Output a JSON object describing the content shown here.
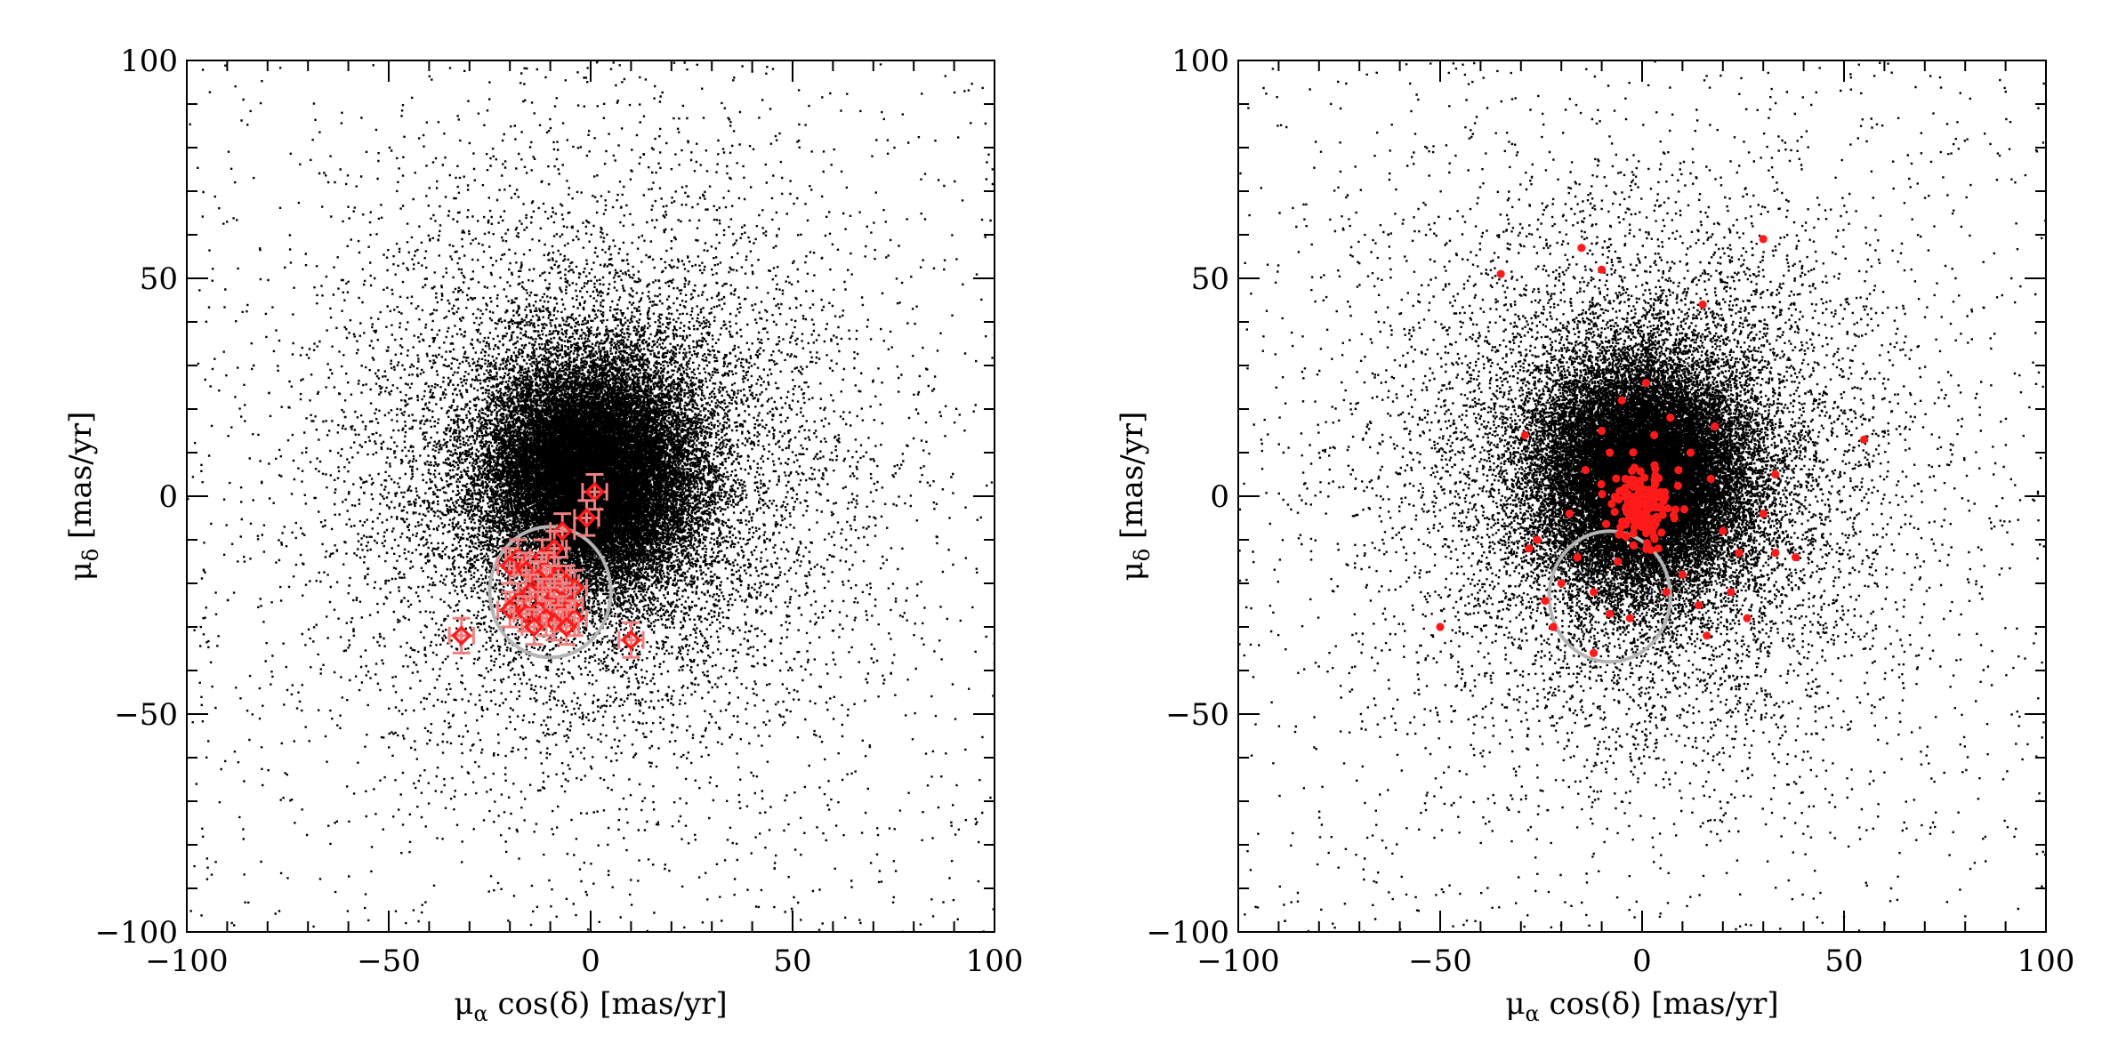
{
  "colors": {
    "background": "#ffffff",
    "field_points": "#000000",
    "member_points": "#ff1a1a",
    "member_errorbars": "#f08080",
    "selection_circle": "#b4b4b4"
  },
  "chart_data": [
    {
      "type": "scatter",
      "title": "",
      "xlabel": {
        "prefix": "μ",
        "sub": "α",
        "suffix": " cos(δ) [mas/yr]"
      },
      "ylabel": {
        "prefix": "μ",
        "sub": "δ",
        "suffix": " [mas/yr]"
      },
      "xlim": [
        -100,
        100
      ],
      "ylim": [
        -100,
        100
      ],
      "xticks": [
        "−100",
        "−50",
        "0",
        "50",
        "100"
      ],
      "yticks": [
        "−100",
        "−50",
        "0",
        "50",
        "100"
      ],
      "grid": false,
      "legend": "none",
      "field_cloud": {
        "center": [
          0,
          5
        ],
        "core_sigma": 13,
        "halo_sigma": 32,
        "marker": "dot",
        "color": "#000000"
      },
      "circle": {
        "center": [
          -10,
          -22
        ],
        "radius": 15
      },
      "series": [
        {
          "marker": "diamond-errorbars",
          "color": "#ff1a1a",
          "points": [
            {
              "x": 1,
              "y": 1,
              "xerr": 3,
              "yerr": 4
            },
            {
              "x": -1,
              "y": -5,
              "xerr": 3,
              "yerr": 4
            },
            {
              "x": -7,
              "y": -8,
              "xerr": 3,
              "yerr": 4
            },
            {
              "x": -9,
              "y": -12,
              "xerr": 3,
              "yerr": 4
            },
            {
              "x": -12,
              "y": -14,
              "xerr": 3,
              "yerr": 4
            },
            {
              "x": -18,
              "y": -14,
              "xerr": 3,
              "yerr": 4
            },
            {
              "x": -20,
              "y": -16,
              "xerr": 3,
              "yerr": 4
            },
            {
              "x": -16,
              "y": -17,
              "xerr": 3,
              "yerr": 4
            },
            {
              "x": -11,
              "y": -17,
              "xerr": 3,
              "yerr": 4
            },
            {
              "x": -8,
              "y": -18,
              "xerr": 3,
              "yerr": 4
            },
            {
              "x": -13,
              "y": -19,
              "xerr": 3,
              "yerr": 4
            },
            {
              "x": -10,
              "y": -20,
              "xerr": 3,
              "yerr": 4
            },
            {
              "x": -6,
              "y": -20,
              "xerr": 3,
              "yerr": 4
            },
            {
              "x": -4,
              "y": -21,
              "xerr": 3,
              "yerr": 4
            },
            {
              "x": -15,
              "y": -22,
              "xerr": 3,
              "yerr": 4
            },
            {
              "x": -12,
              "y": -23,
              "xerr": 3,
              "yerr": 4
            },
            {
              "x": -9,
              "y": -23,
              "xerr": 3,
              "yerr": 4
            },
            {
              "x": -18,
              "y": -24,
              "xerr": 3,
              "yerr": 4
            },
            {
              "x": -7,
              "y": -24,
              "xerr": 3,
              "yerr": 4
            },
            {
              "x": -10,
              "y": -25,
              "xerr": 3,
              "yerr": 4
            },
            {
              "x": -5,
              "y": -25,
              "xerr": 3,
              "yerr": 4
            },
            {
              "x": -20,
              "y": -26,
              "xerr": 3,
              "yerr": 4
            },
            {
              "x": -13,
              "y": -26,
              "xerr": 3,
              "yerr": 4
            },
            {
              "x": -16,
              "y": -27,
              "xerr": 3,
              "yerr": 4
            },
            {
              "x": -8,
              "y": -27,
              "xerr": 3,
              "yerr": 4
            },
            {
              "x": -11,
              "y": -28,
              "xerr": 3,
              "yerr": 4
            },
            {
              "x": -4,
              "y": -28,
              "xerr": 3,
              "yerr": 4
            },
            {
              "x": -9,
              "y": -29,
              "xerr": 3,
              "yerr": 4
            },
            {
              "x": -14,
              "y": -30,
              "xerr": 3,
              "yerr": 4
            },
            {
              "x": -6,
              "y": -30,
              "xerr": 3,
              "yerr": 4
            },
            {
              "x": -32,
              "y": -32,
              "xerr": 3,
              "yerr": 4
            },
            {
              "x": 10,
              "y": -33,
              "xerr": 3,
              "yerr": 4
            }
          ]
        }
      ]
    },
    {
      "type": "scatter",
      "title": "",
      "xlabel": {
        "prefix": "μ",
        "sub": "α",
        "suffix": " cos(δ) [mas/yr]"
      },
      "ylabel": {
        "prefix": "μ",
        "sub": "δ",
        "suffix": " [mas/yr]"
      },
      "xlim": [
        -100,
        100
      ],
      "ylim": [
        -100,
        100
      ],
      "xticks": [
        "−100",
        "−50",
        "0",
        "50",
        "100"
      ],
      "yticks": [
        "−100",
        "−50",
        "0",
        "50",
        "100"
      ],
      "grid": false,
      "legend": "none",
      "field_cloud": {
        "center": [
          0,
          5
        ],
        "core_sigma": 13,
        "halo_sigma": 32,
        "marker": "dot",
        "color": "#000000"
      },
      "circle": {
        "center": [
          -8,
          -23
        ],
        "radius": 15
      },
      "series": [
        {
          "marker": "filled-circle",
          "color": "#ff1a1a",
          "cluster": {
            "center": [
              0,
              -2
            ],
            "sigma": [
              4,
              4
            ],
            "count": 170
          },
          "points": [
            {
              "x": -35,
              "y": 51
            },
            {
              "x": -15,
              "y": 57
            },
            {
              "x": -10,
              "y": 52
            },
            {
              "x": 30,
              "y": 59
            },
            {
              "x": 15,
              "y": 44
            },
            {
              "x": 55,
              "y": 13
            },
            {
              "x": -29,
              "y": 14
            },
            {
              "x": -50,
              "y": -30
            },
            {
              "x": 33,
              "y": 5
            },
            {
              "x": 30,
              "y": -4
            },
            {
              "x": 38,
              "y": -14
            },
            {
              "x": 33,
              "y": -13
            },
            {
              "x": 24,
              "y": -13
            },
            {
              "x": 26,
              "y": -28
            },
            {
              "x": 22,
              "y": -22
            },
            {
              "x": 16,
              "y": -32
            },
            {
              "x": -26,
              "y": -10
            },
            {
              "x": -28,
              "y": -12
            },
            {
              "x": -22,
              "y": -30
            },
            {
              "x": -8,
              "y": -27
            },
            {
              "x": -12,
              "y": -36
            },
            {
              "x": 1,
              "y": 26
            },
            {
              "x": -5,
              "y": 22
            },
            {
              "x": 7,
              "y": 18
            },
            {
              "x": -10,
              "y": 15
            },
            {
              "x": 12,
              "y": 10
            },
            {
              "x": -14,
              "y": 6
            },
            {
              "x": 17,
              "y": 4
            },
            {
              "x": -18,
              "y": -4
            },
            {
              "x": 20,
              "y": -8
            },
            {
              "x": -16,
              "y": -14
            },
            {
              "x": 10,
              "y": -18
            },
            {
              "x": -6,
              "y": -15
            },
            {
              "x": 6,
              "y": -22
            },
            {
              "x": -20,
              "y": -20
            },
            {
              "x": 14,
              "y": -25
            },
            {
              "x": -3,
              "y": -28
            },
            {
              "x": 3,
              "y": 14
            },
            {
              "x": -8,
              "y": 10
            },
            {
              "x": 9,
              "y": 6
            },
            {
              "x": -24,
              "y": -24
            },
            {
              "x": 18,
              "y": 16
            },
            {
              "x": -12,
              "y": -22
            },
            {
              "x": 4,
              "y": -12
            }
          ]
        }
      ]
    }
  ]
}
